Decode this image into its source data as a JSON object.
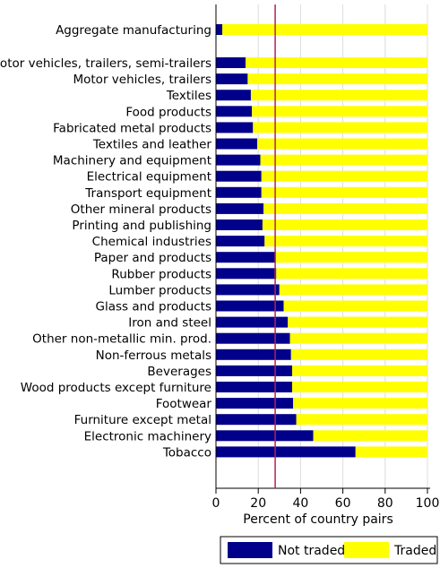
{
  "chart_data": {
    "type": "bar",
    "stacked": true,
    "orientation": "horizontal",
    "categories": [
      "Aggregate manufacturing",
      "Motor vehicles, trailers, semi-trailers",
      "Motor vehicles, trailers",
      "Textiles",
      "Food products",
      "Fabricated metal products",
      "Textiles and leather",
      "Machinery and equipment",
      "Electrical equipment",
      "Transport equipment",
      "Other mineral products",
      "Printing and publishing",
      "Chemical industries",
      "Paper and products",
      "Rubber products",
      "Lumber products",
      "Glass and products",
      "Iron and steel",
      "Other non-metallic min. prod.",
      "Non-ferrous metals",
      "Beverages",
      "Wood products except furniture",
      "Footwear",
      "Furniture except metal",
      "Electronic machinery",
      "Tobacco"
    ],
    "series": [
      {
        "name": "Not traded",
        "color": "#00008b",
        "values": [
          3,
          14,
          15,
          16.5,
          17,
          17.5,
          19.5,
          21,
          21.5,
          21.5,
          22.5,
          22,
          23,
          28,
          28.5,
          30,
          32,
          34,
          35,
          35.5,
          36,
          36,
          36.5,
          38,
          46,
          66
        ]
      },
      {
        "name": "Traded",
        "color": "#ffff00",
        "values": [
          97,
          86,
          85,
          83.5,
          83,
          82.5,
          80.5,
          79,
          78.5,
          78.5,
          77.5,
          78,
          77,
          72,
          71.5,
          70,
          68,
          66,
          65,
          64.5,
          64,
          64,
          63.5,
          62,
          54,
          34
        ]
      }
    ],
    "xlabel": "Percent of country pairs",
    "xlim": [
      0,
      100
    ],
    "xticks": [
      "0",
      "20",
      "40",
      "60",
      "80",
      "100"
    ],
    "reference_line": {
      "value": 28,
      "color": "#b22255"
    },
    "legend": {
      "position": "bottom",
      "labels": [
        "Not traded",
        "Traded"
      ]
    },
    "grid": "vertical"
  }
}
